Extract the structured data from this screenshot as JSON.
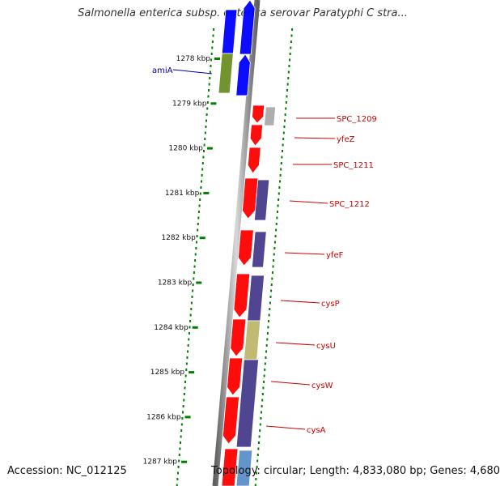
{
  "title": "Salmonella enterica subsp. enterica serovar Paratyphi C stra...",
  "accession": "Accession: NC_012125",
  "topology": "Topology: circular; Length: 4,833,080 bp; Genes: 4,680",
  "colors": {
    "forward_gene": "#ff0000",
    "reverse_gene": "#0000ff",
    "rrna_or_other": "#473c8b",
    "khaki_feature": "#bdb76b",
    "olive_feature": "#6b8e23",
    "grey_feature": "#aaaaaa",
    "tick": "#008000",
    "label_forward": "#cc0000",
    "label_reverse": "#0000aa",
    "backbone": "#808080"
  },
  "kbp_ticks": [
    "1278 kbp",
    "1279 kbp",
    "1280 kbp",
    "1281 kbp",
    "1282 kbp",
    "1283 kbp",
    "1284 kbp",
    "1285 kbp",
    "1286 kbp",
    "1287 kbp"
  ],
  "gene_labels": [
    {
      "name": "amiA",
      "strand": "reverse"
    },
    {
      "name": "SPC_1209",
      "strand": "forward"
    },
    {
      "name": "yfeZ",
      "strand": "forward"
    },
    {
      "name": "SPC_1211",
      "strand": "forward"
    },
    {
      "name": "SPC_1212",
      "strand": "forward"
    },
    {
      "name": "yfeF",
      "strand": "forward"
    },
    {
      "name": "cysP",
      "strand": "forward"
    },
    {
      "name": "cysU",
      "strand": "forward"
    },
    {
      "name": "cysW",
      "strand": "forward"
    },
    {
      "name": "cysA",
      "strand": "forward"
    }
  ]
}
